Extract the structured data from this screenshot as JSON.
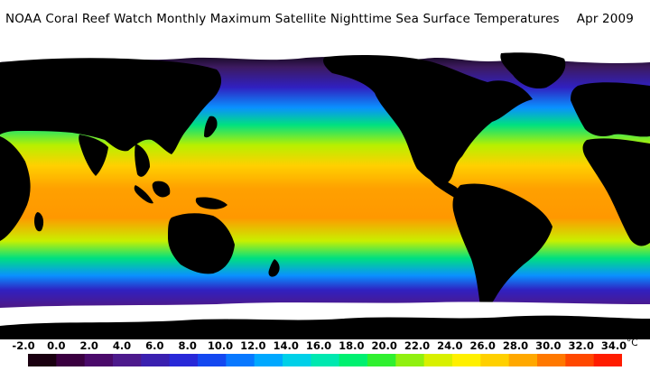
{
  "title": {
    "main": "NOAA Coral Reef Watch Monthly Maximum Satellite Nighttime Sea Surface Temperatures",
    "date": "Apr 2009"
  },
  "legend": {
    "ticks": [
      "-2.0",
      "0.0",
      "2.0",
      "4.0",
      "6.0",
      "8.0",
      "10.0",
      "12.0",
      "14.0",
      "16.0",
      "18.0",
      "20.0",
      "22.0",
      "24.0",
      "26.0",
      "28.0",
      "30.0",
      "32.0",
      "34.0"
    ],
    "unit": "°C",
    "colors": [
      "#1a0010",
      "#3a0040",
      "#4a0a6a",
      "#4d1a8c",
      "#3a20b0",
      "#2828d8",
      "#1448f0",
      "#0878ff",
      "#00a8ff",
      "#00d0e8",
      "#00e8b0",
      "#00f070",
      "#30f030",
      "#90f010",
      "#d8f000",
      "#fff000",
      "#ffd000",
      "#ffa800",
      "#ff7800",
      "#ff4800",
      "#ff1c00"
    ]
  },
  "map": {
    "ocean_colors": {
      "polar": "#3d1a60",
      "cold": "#3020c0",
      "cool": "#0a90ff",
      "mild": "#00e080",
      "warm": "#b8f000",
      "hot": "#ffa000",
      "land": "#000000",
      "ice": "#ffffff"
    }
  }
}
